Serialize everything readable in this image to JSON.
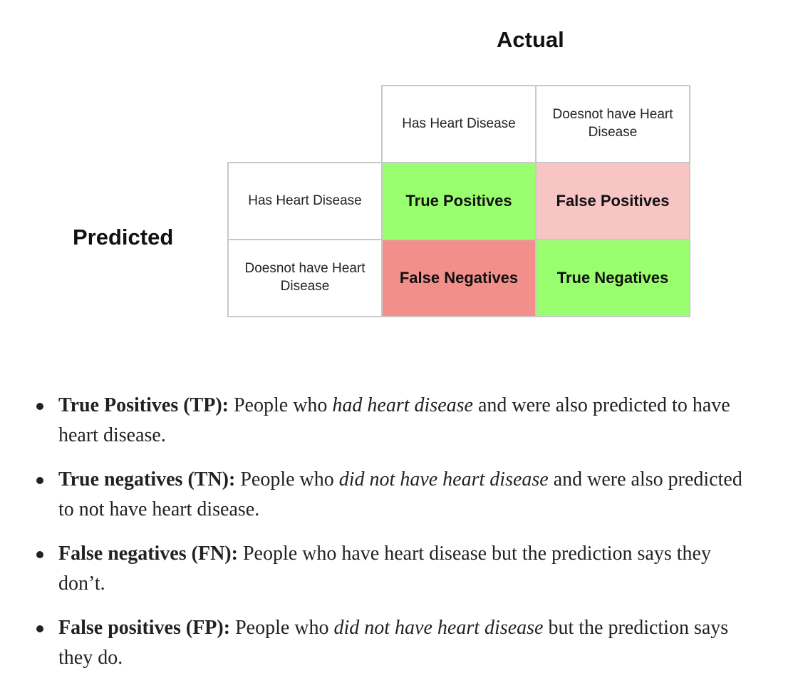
{
  "matrix": {
    "actual_title": "Actual",
    "predicted_title": "Predicted",
    "column_headers": [
      "Has Heart Disease",
      "Doesnot have Heart Disease"
    ],
    "row_headers": [
      "Has Heart Disease",
      "Doesnot have Heart Disease"
    ],
    "cells": {
      "true_positives": "True Positives",
      "false_positives": "False Positives",
      "false_negatives": "False Negatives",
      "true_negatives": "True Negatives"
    },
    "colors": {
      "true_cells": "#99ff6e",
      "false_positive_cell": "#f7c5c3",
      "false_negative_cell": "#f28f8a",
      "grid_border": "#c8c8c8"
    }
  },
  "definitions": [
    {
      "term": "True Positives (TP):",
      "text_before": " People who ",
      "emphasis": "had heart disease",
      "text_after": " and were also predicted to have heart disease."
    },
    {
      "term": "True negatives (TN):",
      "text_before": " People who ",
      "emphasis": "did not have heart disease",
      "text_after": " and were also predicted to not have heart disease."
    },
    {
      "term": "False negatives (FN):",
      "text_before": " People who have heart disease but the prediction says they don’t.",
      "emphasis": "",
      "text_after": ""
    },
    {
      "term": "False positives (FP):",
      "text_before": " People who ",
      "emphasis": "did not have heart disease",
      "text_after": " but the prediction says they do."
    }
  ]
}
